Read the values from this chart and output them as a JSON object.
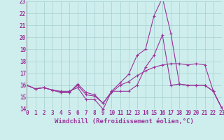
{
  "xlabel": "Windchill (Refroidissement éolien,°C)",
  "background_color": "#ceeeed",
  "grid_color": "#aad4d3",
  "line_color": "#993399",
  "x_min": 0,
  "x_max": 23,
  "y_min": 14,
  "y_max": 23,
  "lines": [
    {
      "x": [
        0,
        1,
        2,
        3,
        4,
        5,
        6,
        7,
        8,
        9,
        10,
        11,
        12,
        13,
        14,
        15,
        16,
        17,
        18,
        19,
        20,
        21,
        22,
        23
      ],
      "y": [
        16.0,
        15.7,
        15.8,
        15.6,
        15.5,
        15.5,
        15.8,
        14.8,
        14.8,
        14.0,
        15.5,
        15.5,
        15.5,
        16.0,
        17.5,
        18.5,
        20.2,
        16.0,
        16.1,
        16.0,
        16.0,
        16.0,
        15.5,
        14.1
      ]
    },
    {
      "x": [
        0,
        1,
        2,
        3,
        4,
        5,
        6,
        7,
        8,
        9,
        10,
        11,
        12,
        13,
        14,
        15,
        16,
        17,
        18,
        19,
        20,
        21,
        22,
        23
      ],
      "y": [
        16.0,
        15.7,
        15.8,
        15.6,
        15.4,
        15.4,
        16.0,
        15.2,
        15.1,
        14.5,
        15.4,
        16.0,
        16.3,
        16.8,
        17.2,
        17.5,
        17.7,
        17.8,
        17.8,
        17.7,
        17.8,
        17.7,
        15.5,
        14.1
      ]
    },
    {
      "x": [
        0,
        1,
        2,
        3,
        4,
        5,
        6,
        7,
        8,
        9,
        10,
        11,
        12,
        13,
        14,
        15,
        16,
        17,
        18,
        19,
        20,
        21,
        22,
        23
      ],
      "y": [
        16.0,
        15.7,
        15.8,
        15.6,
        15.4,
        15.4,
        16.1,
        15.4,
        15.2,
        14.5,
        15.5,
        16.2,
        16.9,
        18.5,
        19.0,
        21.8,
        23.3,
        20.3,
        16.1,
        16.0,
        16.0,
        16.0,
        15.5,
        14.1
      ]
    }
  ],
  "tick_fontsize": 5.5,
  "xlabel_fontsize": 6.5
}
